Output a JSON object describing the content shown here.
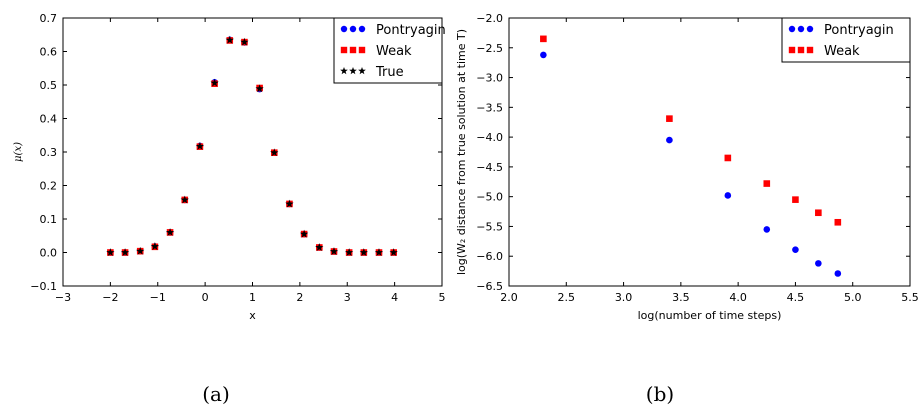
{
  "captions": [
    "(a)",
    "(b)"
  ],
  "chart_data": [
    {
      "type": "scatter",
      "title": "",
      "xlabel": "x",
      "ylabel": "μ(x)",
      "xlim": [
        -3,
        5
      ],
      "ylim": [
        -0.1,
        0.7
      ],
      "xticks": [
        "−3",
        "−2",
        "−1",
        "0",
        "1",
        "2",
        "3",
        "4",
        "5"
      ],
      "yticks": [
        "−0.1",
        "0.0",
        "0.1",
        "0.2",
        "0.3",
        "0.4",
        "0.5",
        "0.6",
        "0.7"
      ],
      "grid": false,
      "legend": "top-right",
      "x": [
        -2.0,
        -1.69,
        -1.37,
        -1.06,
        -0.74,
        -0.43,
        -0.11,
        0.2,
        0.52,
        0.83,
        1.15,
        1.46,
        1.78,
        2.09,
        2.41,
        2.72,
        3.04,
        3.35,
        3.67,
        3.98
      ],
      "series": [
        {
          "name": "Pontryagin",
          "marker": "circle",
          "color": "#0000ff",
          "values": [
            0.0,
            0.0,
            0.004,
            0.018,
            0.06,
            0.157,
            0.318,
            0.508,
            0.635,
            0.627,
            0.488,
            0.298,
            0.145,
            0.055,
            0.015,
            0.003,
            0.0,
            0.0,
            0.0,
            0.0
          ]
        },
        {
          "name": "Weak",
          "marker": "square",
          "color": "#ff0000",
          "values": [
            0.0,
            0.0,
            0.004,
            0.017,
            0.06,
            0.157,
            0.316,
            0.504,
            0.633,
            0.628,
            0.491,
            0.298,
            0.145,
            0.055,
            0.015,
            0.003,
            0.0,
            0.0,
            0.0,
            0.0
          ]
        },
        {
          "name": "True",
          "marker": "star",
          "color": "#000000",
          "values": [
            0.0,
            0.0,
            0.004,
            0.018,
            0.06,
            0.157,
            0.317,
            0.506,
            0.634,
            0.628,
            0.489,
            0.298,
            0.145,
            0.055,
            0.015,
            0.003,
            0.0,
            0.0,
            0.0,
            0.0
          ]
        }
      ]
    },
    {
      "type": "scatter",
      "title": "",
      "xlabel": "log(number of time steps)",
      "ylabel": "log(W₂ distance from true solution at time T)",
      "xlim": [
        2.0,
        5.5
      ],
      "ylim": [
        -6.5,
        -2.0
      ],
      "xticks": [
        "2.0",
        "2.5",
        "3.0",
        "3.5",
        "4.0",
        "4.5",
        "5.0",
        "5.5"
      ],
      "yticks": [
        "−6.5",
        "−6.0",
        "−5.5",
        "−5.0",
        "−4.5",
        "−4.0",
        "−3.5",
        "−3.0",
        "−2.5",
        "−2.0"
      ],
      "grid": false,
      "legend": "top-right",
      "x": [
        2.3,
        3.4,
        3.91,
        4.25,
        4.5,
        4.7,
        4.87
      ],
      "series": [
        {
          "name": "Pontryagin",
          "marker": "circle",
          "color": "#0000ff",
          "values": [
            -2.62,
            -4.05,
            -4.98,
            -5.55,
            -5.89,
            -6.12,
            -6.29
          ]
        },
        {
          "name": "Weak",
          "marker": "square",
          "color": "#ff0000",
          "values": [
            -2.35,
            -3.69,
            -4.35,
            -4.78,
            -5.05,
            -5.27,
            -5.43
          ]
        }
      ]
    }
  ]
}
